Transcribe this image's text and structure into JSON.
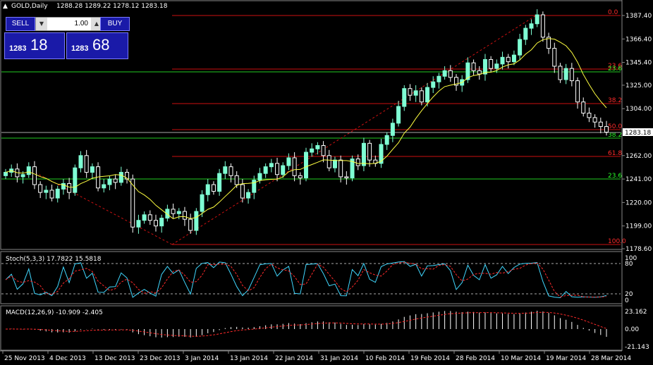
{
  "header": {
    "arrow": "▲",
    "symbol": "GOLD,Daily",
    "ohlc": "1288.28 1289.22 1278.12 1283.18"
  },
  "trade_panel": {
    "sell_label": "SELL",
    "buy_label": "BUY",
    "lot_value": "1.00",
    "sell_small": "1283",
    "sell_big": "18",
    "buy_small": "1283",
    "buy_big": "68"
  },
  "price_axis": [
    "1387.40",
    "1366.40",
    "1345.40",
    "1325.00",
    "1304.00",
    "1262.00",
    "1241.00",
    "1220.00",
    "1199.00",
    "1178.60"
  ],
  "current_price": "1283.18",
  "fib_red": [
    "0.0",
    "23.6",
    "38.2",
    "50.0",
    "61.8",
    "100.0"
  ],
  "fib_green": [
    "23.6",
    "38.2",
    "23.6"
  ],
  "stoch": {
    "label": "Stoch(5,3,3) 17.7822 15.5818",
    "levels": [
      "100",
      "80",
      "20",
      "0"
    ]
  },
  "macd": {
    "label": "MACD(12,26,9) -10.909 -2.405",
    "levels": [
      "23.162",
      "0.00",
      "-21.143"
    ]
  },
  "dates": [
    "25 Nov 2013",
    "4 Dec 2013",
    "13 Dec 2013",
    "23 Dec 2013",
    "3 Jan 2014",
    "13 Jan 2014",
    "22 Jan 2014",
    "31 Jan 2014",
    "10 Feb 2014",
    "19 Feb 2014",
    "28 Feb 2014",
    "10 Mar 2014",
    "19 Mar 2014",
    "28 Mar 2014"
  ],
  "colors": {
    "bull": "#7fffd4",
    "bear": "#ffffff",
    "ma": "#ffff40",
    "fib_red": "#cc1111",
    "fib_green": "#22cc22",
    "stoch_main": "#40d8ff",
    "stoch_signal": "#ff2a2a"
  },
  "chart_data": {
    "type": "candlestick",
    "series": [
      {
        "name": "GOLD,Daily",
        "closes": [
          1247,
          1250,
          1243,
          1245,
          1252,
          1236,
          1229,
          1231,
          1224,
          1232,
          1237,
          1229,
          1251,
          1262,
          1247,
          1252,
          1233,
          1236,
          1241,
          1238,
          1247,
          1241,
          1198,
          1204,
          1209,
          1204,
          1199,
          1206,
          1214,
          1210,
          1212,
          1205,
          1195,
          1212,
          1227,
          1236,
          1230,
          1246,
          1252,
          1244,
          1236,
          1224,
          1229,
          1240,
          1246,
          1252,
          1255,
          1245,
          1253,
          1260,
          1244,
          1242,
          1265,
          1268,
          1271,
          1262,
          1251,
          1258,
          1243,
          1242,
          1259,
          1253,
          1273,
          1258,
          1255,
          1272,
          1280,
          1291,
          1306,
          1322,
          1316,
          1320,
          1310,
          1323,
          1328,
          1333,
          1338,
          1332,
          1325,
          1330,
          1345,
          1338,
          1335,
          1348,
          1340,
          1344,
          1350,
          1346,
          1352,
          1366,
          1376,
          1380,
          1388,
          1368,
          1358,
          1342,
          1330,
          1340,
          1329,
          1310,
          1300,
          1296,
          1292,
          1288,
          1283
        ]
      }
    ],
    "ylim": [
      1178.6,
      1392
    ]
  }
}
